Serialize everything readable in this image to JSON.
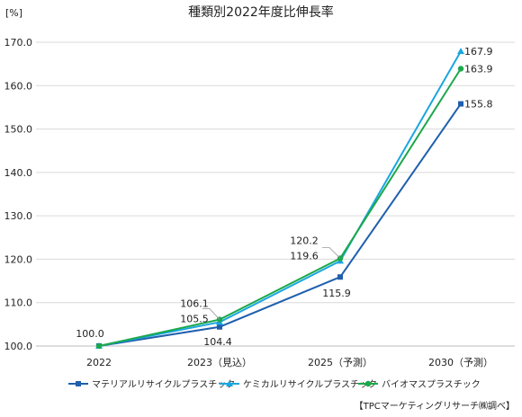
{
  "chart_data": {
    "type": "line",
    "title": "種類別2022年度比伸長率",
    "unit_label": "[%]",
    "source": "【TPCマーケティングリサーチ㈱調べ】",
    "categories": [
      "2022",
      "2023（見込）",
      "2025（予測）",
      "2030（予測）"
    ],
    "ylim": [
      100,
      170
    ],
    "yticks": [
      "100.0",
      "110.0",
      "120.0",
      "130.0",
      "140.0",
      "150.0",
      "160.0",
      "170.0"
    ],
    "grid": true,
    "legend_placement": "bottom",
    "series": [
      {
        "name": "マテリアルリサイクルプラスチック",
        "values": [
          100.0,
          104.4,
          115.9,
          155.8
        ],
        "labels": [
          "",
          "104.4",
          "115.9",
          "155.8"
        ],
        "color": "#1f5fad",
        "marker": "square"
      },
      {
        "name": "ケミカルリサイクルプラスチック",
        "values": [
          100.0,
          105.5,
          119.6,
          167.9
        ],
        "labels": [
          "",
          "105.5",
          "119.6",
          "167.9"
        ],
        "color": "#1aa6e0",
        "marker": "triangle"
      },
      {
        "name": "バイオマスプラスチック",
        "values": [
          100.0,
          106.1,
          120.2,
          163.9
        ],
        "labels": [
          "100.0",
          "106.1",
          "120.2",
          "163.9"
        ],
        "color": "#1aa84a",
        "marker": "circle"
      }
    ]
  }
}
